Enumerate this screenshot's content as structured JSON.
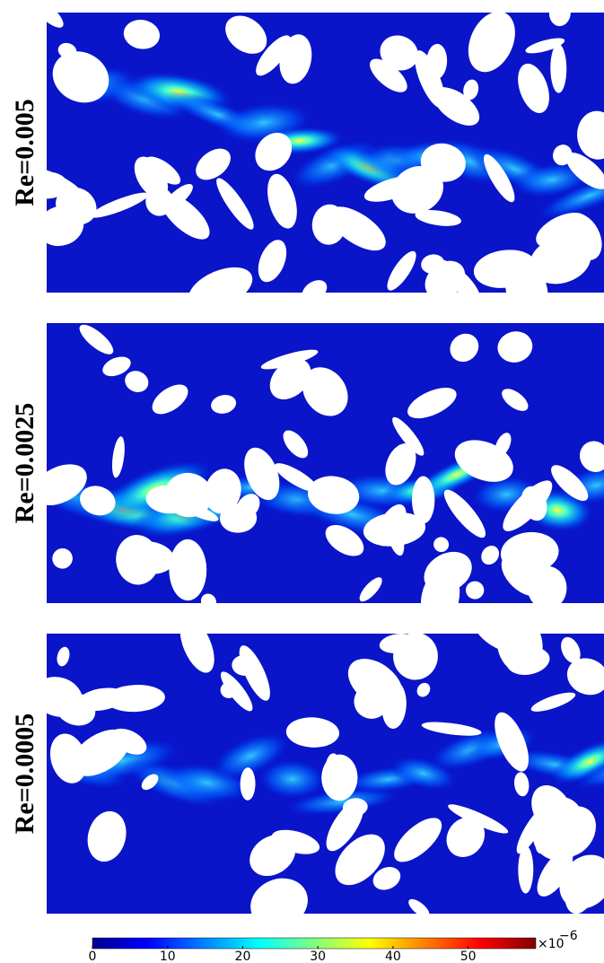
{
  "panels": [
    {
      "label": "Re=0.005"
    },
    {
      "label": "Re=0.0025"
    },
    {
      "label": "Re=0.0005"
    }
  ],
  "colorbar": {
    "lim": [
      0,
      59
    ],
    "ticks": [
      0,
      10,
      20,
      30,
      40,
      50
    ],
    "multiplier": "×10",
    "exponent": "−6"
  }
}
